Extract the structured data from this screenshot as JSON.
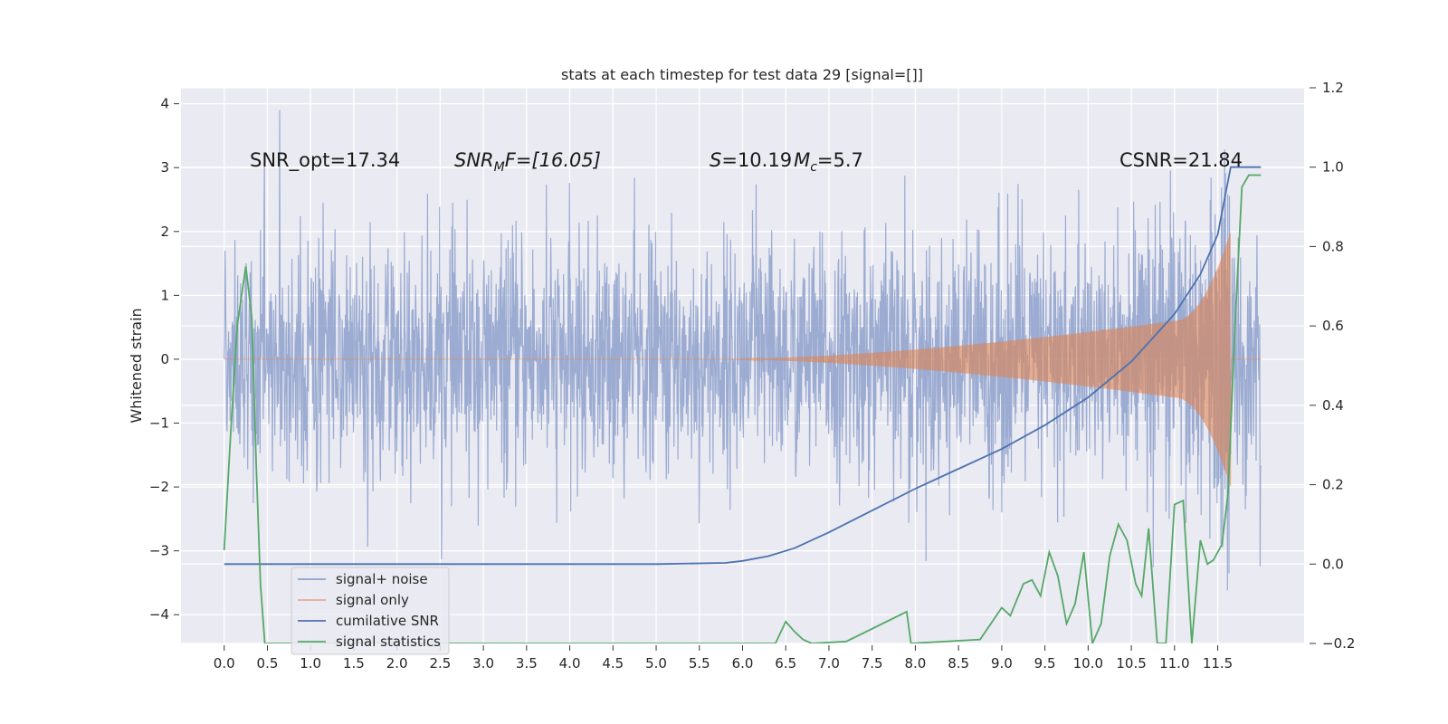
{
  "chart_data": {
    "type": "line",
    "title": "stats at each timestep for test data 29 [signal=[]]",
    "ylabel": "Whitened strain",
    "xlabel": "",
    "xlim": [
      -0.5,
      12.5
    ],
    "ylim": [
      -4.45,
      4.25
    ],
    "y2lim": [
      -0.2,
      1.2
    ],
    "x_ticks": [
      0.0,
      0.5,
      1.0,
      1.5,
      2.0,
      2.5,
      3.0,
      3.5,
      4.0,
      4.5,
      5.0,
      5.5,
      6.0,
      6.5,
      7.0,
      7.5,
      8.0,
      8.5,
      9.0,
      9.5,
      10.0,
      10.5,
      11.0,
      11.5
    ],
    "x_tick_labels": [
      "0.0",
      "0.5",
      "1.0",
      "1.5",
      "2.0",
      "2.5",
      "3.0",
      "3.5",
      "4.0",
      "4.5",
      "5.0",
      "5.5",
      "6.0",
      "6.5",
      "7.0",
      "7.5",
      "8.0",
      "8.5",
      "9.0",
      "9.5",
      "10.0",
      "10.5",
      "11.0",
      "11.5"
    ],
    "y_ticks": [
      4,
      3,
      2,
      1,
      0,
      -1,
      -2,
      -3,
      -4
    ],
    "y_tick_labels": [
      "4",
      "3",
      "2",
      "1",
      "0",
      "−1",
      "−2",
      "−3",
      "−4"
    ],
    "y2_ticks": [
      1.2,
      1.0,
      0.8,
      0.6,
      0.4,
      0.2,
      0.0,
      -0.2
    ],
    "y2_tick_labels": [
      "1.2",
      "1.0",
      "0.8",
      "0.6",
      "0.4",
      "0.2",
      "0.0",
      "−0.2"
    ],
    "grid": true,
    "legend_position": "lower-left",
    "legend": [
      {
        "label": "signal+ noise",
        "color": "#8da0cb"
      },
      {
        "label": "signal only",
        "color": "#dd8452"
      },
      {
        "label": "cumilative SNR",
        "color": "#4c72b0"
      },
      {
        "label": "signal statistics",
        "color": "#55a868"
      }
    ],
    "annotations": {
      "snr_opt": "SNR_opt=17.34",
      "snr_mf_pre": "SNR",
      "snr_mf_sub": "M",
      "snr_mf_post": "F=[16.05]",
      "s_pre": "S",
      "s_post": "=10.19",
      "mc_pre": "M",
      "mc_sub": "c",
      "mc_post": "=5.7",
      "csnr": "CSNR=21.84"
    },
    "noise": {
      "x_start": 0.0,
      "x_end": 12.0,
      "sigma": 1.0,
      "base_envelope": 1.75
    },
    "signal_only": {
      "onset": 5.8,
      "peak_x": 11.65,
      "amplitude_at_11": 0.6,
      "peak_amplitude": 2.0,
      "x_end": 12.0
    },
    "cumulative_snr": {
      "axis": "right",
      "x": [
        0.0,
        5.0,
        5.8,
        6.0,
        6.3,
        6.6,
        7.0,
        7.5,
        8.0,
        8.5,
        9.0,
        9.5,
        10.0,
        10.5,
        11.0,
        11.3,
        11.5,
        11.65,
        12.0
      ],
      "y": [
        0.0,
        0.0,
        0.003,
        0.008,
        0.02,
        0.04,
        0.08,
        0.135,
        0.19,
        0.24,
        0.29,
        0.35,
        0.42,
        0.51,
        0.63,
        0.73,
        0.83,
        1.0,
        1.0
      ]
    },
    "signal_statistics": {
      "axis": "right",
      "x": [
        0.0,
        0.08,
        0.15,
        0.25,
        0.32,
        0.37,
        0.42,
        0.47,
        6.38,
        6.5,
        6.6,
        6.7,
        6.8,
        7.2,
        7.9,
        7.95,
        8.75,
        9.0,
        9.1,
        9.25,
        9.35,
        9.45,
        9.55,
        9.65,
        9.75,
        9.85,
        9.95,
        10.05,
        10.15,
        10.25,
        10.35,
        10.45,
        10.55,
        10.62,
        10.7,
        10.8,
        10.9,
        11.0,
        11.1,
        11.2,
        11.3,
        11.38,
        11.45,
        11.55,
        11.62,
        11.7,
        11.78,
        11.86,
        11.93,
        12.0
      ],
      "y": [
        0.035,
        0.35,
        0.6,
        0.75,
        0.62,
        0.25,
        -0.05,
        -0.2,
        -0.2,
        -0.145,
        -0.17,
        -0.19,
        -0.2,
        -0.195,
        -0.12,
        -0.2,
        -0.19,
        -0.11,
        -0.13,
        -0.05,
        -0.04,
        -0.08,
        0.03,
        -0.03,
        -0.15,
        -0.1,
        0.03,
        -0.2,
        -0.15,
        0.02,
        0.1,
        0.06,
        -0.05,
        -0.08,
        0.09,
        -0.2,
        -0.2,
        0.15,
        0.16,
        -0.2,
        0.06,
        0.0,
        0.01,
        0.05,
        0.18,
        0.6,
        0.95,
        0.98,
        0.98,
        0.98
      ]
    }
  }
}
